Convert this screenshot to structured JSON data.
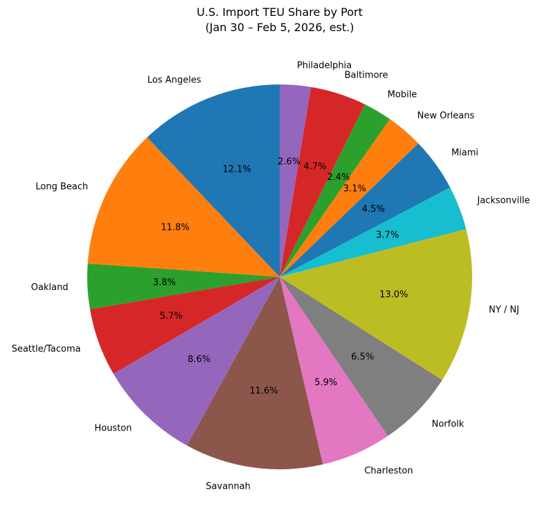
{
  "chart_data": {
    "type": "pie",
    "title_lines": [
      "U.S. Import TEU Share by Port",
      "(Jan 30 – Feb 5, 2026, est.)"
    ],
    "start_angle_deg": 90,
    "direction": "counterclockwise",
    "slices": [
      {
        "label": "Los Angeles",
        "value": 12.1,
        "pct_label": "12.1%",
        "color": "#1f77b4"
      },
      {
        "label": "Long Beach",
        "value": 11.8,
        "pct_label": "11.8%",
        "color": "#ff7f0e"
      },
      {
        "label": "Oakland",
        "value": 3.8,
        "pct_label": "3.8%",
        "color": "#2ca02c"
      },
      {
        "label": "Seattle/Tacoma",
        "value": 5.7,
        "pct_label": "5.7%",
        "color": "#d62728"
      },
      {
        "label": "Houston",
        "value": 8.6,
        "pct_label": "8.6%",
        "color": "#9467bd"
      },
      {
        "label": "Savannah",
        "value": 11.6,
        "pct_label": "11.6%",
        "color": "#8c564b"
      },
      {
        "label": "Charleston",
        "value": 5.9,
        "pct_label": "5.9%",
        "color": "#e377c2"
      },
      {
        "label": "Norfolk",
        "value": 6.5,
        "pct_label": "6.5%",
        "color": "#7f7f7f"
      },
      {
        "label": "NY / NJ",
        "value": 13.0,
        "pct_label": "13.0%",
        "color": "#bcbd22"
      },
      {
        "label": "Jacksonville",
        "value": 3.7,
        "pct_label": "3.7%",
        "color": "#17becf"
      },
      {
        "label": "Miami",
        "value": 4.5,
        "pct_label": "4.5%",
        "color": "#1f77b4"
      },
      {
        "label": "New Orleans",
        "value": 3.1,
        "pct_label": "3.1%",
        "color": "#ff7f0e"
      },
      {
        "label": "Mobile",
        "value": 2.4,
        "pct_label": "2.4%",
        "color": "#2ca02c"
      },
      {
        "label": "Baltimore",
        "value": 4.7,
        "pct_label": "4.7%",
        "color": "#d62728"
      },
      {
        "label": "Philadelphia",
        "value": 2.6,
        "pct_label": "2.6%",
        "color": "#9467bd"
      }
    ]
  }
}
